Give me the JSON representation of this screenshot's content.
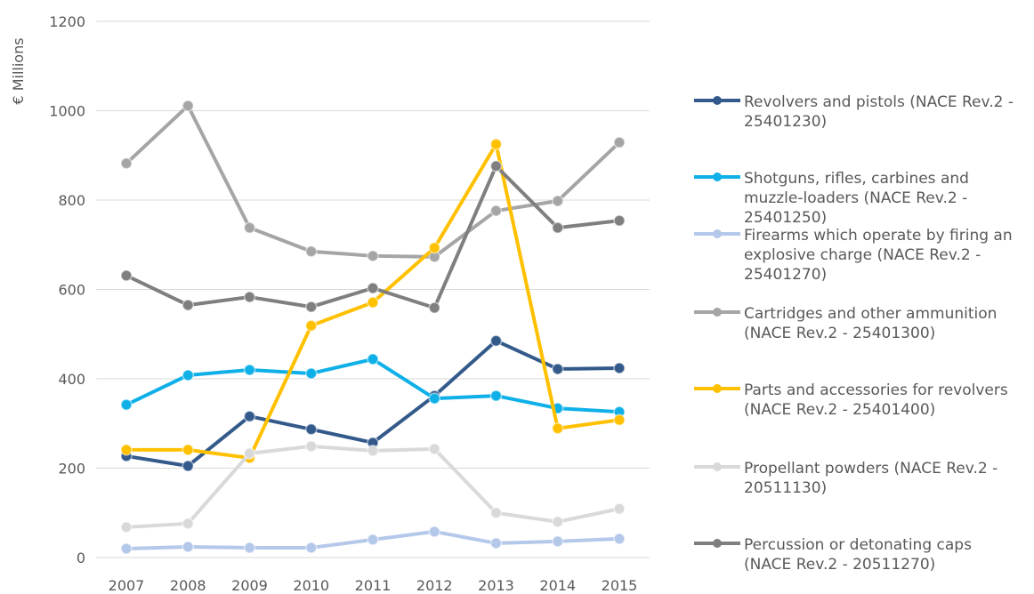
{
  "chart_data": {
    "type": "line",
    "y_label": "€ Millions",
    "categories": [
      "2007",
      "2008",
      "2009",
      "2010",
      "2011",
      "2012",
      "2013",
      "2014",
      "2015"
    ],
    "ylim": [
      0,
      1200
    ],
    "yticks": [
      0,
      200,
      400,
      600,
      800,
      1000,
      1200
    ],
    "grid": true,
    "series": [
      {
        "name": "Revolvers and pistols (NACE Rev.2 - 25401230)",
        "color": "#335a8a",
        "values": [
          227,
          205,
          316,
          287,
          257,
          362,
          485,
          422,
          424
        ]
      },
      {
        "name": "Shotguns, rifles, carbines and muzzle-loaders (NACE Rev.2 - 25401250)",
        "color": "#0fb0e8",
        "values": [
          342,
          408,
          420,
          412,
          444,
          356,
          362,
          334,
          326
        ]
      },
      {
        "name": "Firearms which operate by firing an explosive charge (NACE Rev.2 - 25401270)",
        "color": "#b4c8ea",
        "values": [
          20,
          24,
          22,
          22,
          40,
          58,
          32,
          36,
          42
        ]
      },
      {
        "name": "Cartridges and other ammunition (NACE Rev.2 - 25401300)",
        "color": "#a5a5a5",
        "values": [
          882,
          1011,
          738,
          685,
          675,
          673,
          776,
          798,
          929
        ]
      },
      {
        "name": "Parts and accessories for revolvers  (NACE Rev.2 - 25401400)",
        "color": "#ffc000",
        "values": [
          241,
          241,
          223,
          519,
          571,
          693,
          925,
          289,
          308
        ]
      },
      {
        "name": "Propellant powders (NACE Rev.2 - 20511130)",
        "color": "#d9d9d9",
        "values": [
          68,
          76,
          233,
          249,
          239,
          243,
          100,
          80,
          109
        ]
      },
      {
        "name": "Percussion or detonating caps (NACE Rev.2 - 20511270)",
        "color": "#7f7f7f",
        "values": [
          631,
          565,
          583,
          561,
          603,
          559,
          876,
          738,
          754
        ]
      }
    ]
  }
}
